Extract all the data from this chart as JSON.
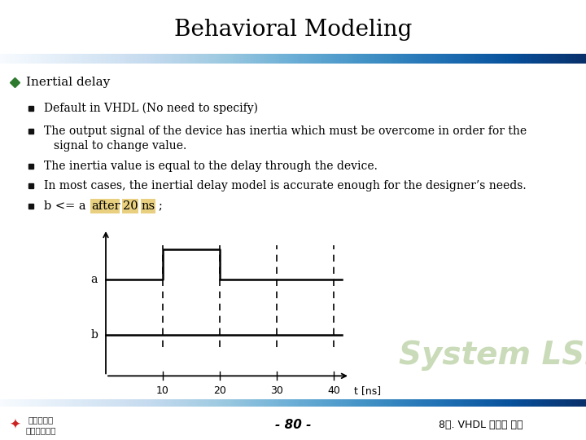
{
  "title": "Behavioral Modeling",
  "title_fontsize": 20,
  "background_color": "#ffffff",
  "bar_left_color": "#e8eeff",
  "bar_right_color": "#4060c8",
  "footer_bar_color": "#3a5fa0",
  "bullet_main": "Inertial delay",
  "bullet_main_color": "#2e7a2e",
  "bullets": [
    "Default in VHDL (No need to specify)",
    "The output signal of the device has inertia which must be overcome in order for the signal to change value.",
    "The inertia value is equal to the delay through the device.",
    "In most cases, the inertial delay model is accurate enough for the designer’s needs.",
    "b <= a  after 20 ns ;"
  ],
  "highlight_color": "#e8d080",
  "signal_a_label": "a",
  "signal_b_label": "b",
  "time_ticks": [
    10,
    20,
    30,
    40
  ],
  "time_label": "t [ns]",
  "footer_page": "- 80 -",
  "footer_right": "8장. VHDL 구문과 예제",
  "watermark_text": "System LSI",
  "watermark_color": "#b8cfa0"
}
